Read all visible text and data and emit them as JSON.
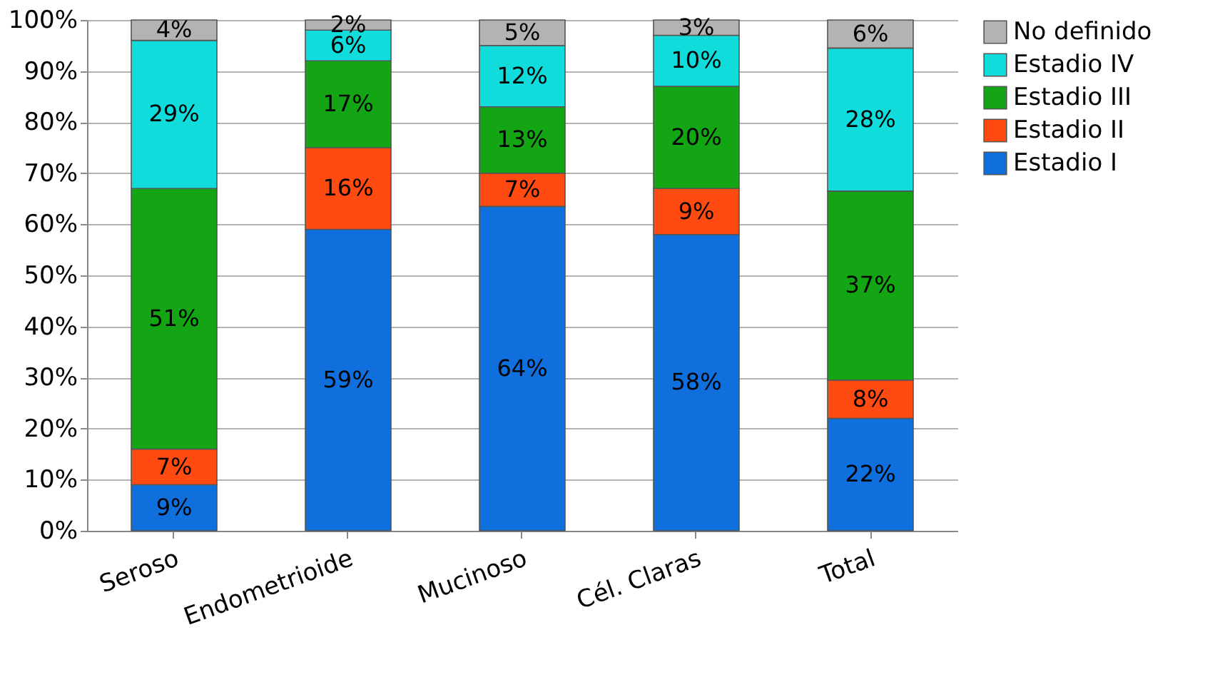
{
  "chart_data": {
    "type": "bar",
    "stacked": true,
    "categories": [
      "Seroso",
      "Endometrioide",
      "Mucinoso",
      "Cél. Claras",
      "Total"
    ],
    "series": [
      {
        "name": "Estadio I",
        "color": "#0f6fdc",
        "values": [
          9,
          59,
          63.5,
          58,
          22
        ],
        "value_labels": [
          "9%",
          "59%",
          "64%",
          "58%",
          "22%"
        ]
      },
      {
        "name": "Estadio II",
        "color": "#ff4a12",
        "values": [
          7,
          16,
          6.5,
          9,
          7.5
        ],
        "value_labels": [
          "7%",
          "16%",
          "7%",
          "9%",
          "8%"
        ]
      },
      {
        "name": "Estadio III",
        "color": "#14a514",
        "values": [
          51,
          17,
          13,
          20,
          37
        ],
        "value_labels": [
          "51%",
          "17%",
          "13%",
          "20%",
          "37%"
        ]
      },
      {
        "name": "Estadio IV",
        "color": "#10dcdc",
        "values": [
          29,
          6,
          12,
          10,
          28
        ],
        "value_labels": [
          "29%",
          "6%",
          "12%",
          "10%",
          "28%"
        ]
      },
      {
        "name": "No definido",
        "color": "#b3b3b3",
        "values": [
          4,
          2,
          5,
          3,
          5.5
        ],
        "value_labels": [
          "4%",
          "2%",
          "5%",
          "3%",
          "6%"
        ]
      }
    ],
    "ylim": [
      0,
      100
    ],
    "yticks": [
      {
        "value": 0,
        "label": "0%"
      },
      {
        "value": 10,
        "label": "10%"
      },
      {
        "value": 20,
        "label": "20%"
      },
      {
        "value": 30,
        "label": "30%"
      },
      {
        "value": 40,
        "label": "40%"
      },
      {
        "value": 50,
        "label": "50%"
      },
      {
        "value": 60,
        "label": "60%"
      },
      {
        "value": 70,
        "label": "70%"
      },
      {
        "value": 80,
        "label": "80%"
      },
      {
        "value": 90,
        "label": "90%"
      },
      {
        "value": 100,
        "label": "100%"
      }
    ],
    "grid": "y",
    "legend": "right"
  }
}
